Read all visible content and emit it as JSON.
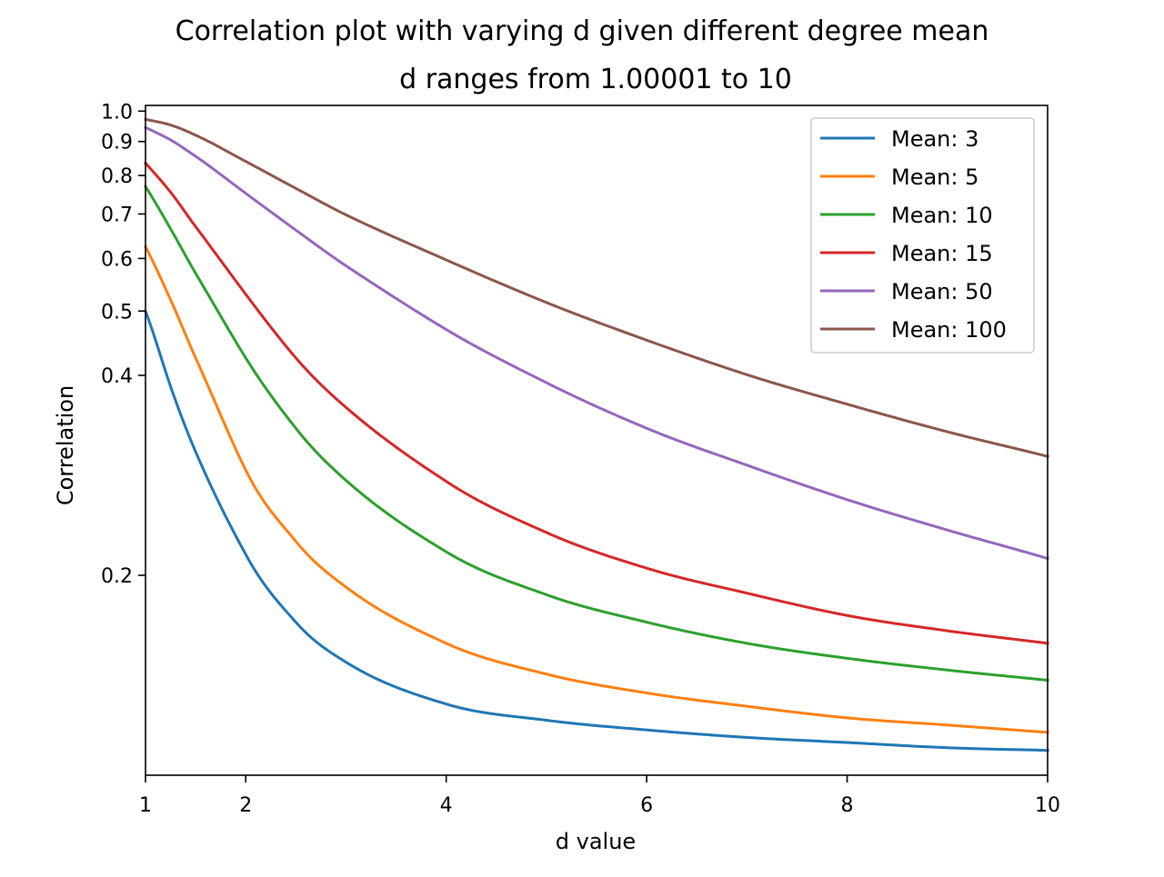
{
  "chart_data": {
    "type": "line",
    "title": "Correlation plot with varying d given different degree mean",
    "subtitle": "d ranges from 1.00001 to 10",
    "xlabel": "d value",
    "ylabel": "Correlation",
    "xlim": [
      1,
      10
    ],
    "ylim": [
      0.1,
      1.02
    ],
    "x_ticks": [
      1,
      2,
      4,
      6,
      8,
      10
    ],
    "x_tick_labels": [
      "1",
      "2",
      "4",
      "6",
      "8",
      "10"
    ],
    "y_ticks": [
      0.2,
      0.4,
      0.5,
      0.6,
      0.7,
      0.8,
      0.9,
      1.0
    ],
    "y_tick_labels": [
      "0.2",
      "0.4",
      "0.5",
      "0.6",
      "0.7",
      "0.8",
      "0.9",
      "1.0"
    ],
    "grid": false,
    "legend_position": "top-right",
    "x": [
      1,
      1.25,
      1.5,
      2,
      2.5,
      3,
      4,
      5,
      6,
      7,
      8,
      9,
      10
    ],
    "series": [
      {
        "name": "Mean: 3",
        "color": "#1f77b4",
        "values": [
          0.5,
          0.385,
          0.307,
          0.215,
          0.17,
          0.148,
          0.128,
          0.121,
          0.117,
          0.114,
          0.112,
          0.11,
          0.109
        ]
      },
      {
        "name": "Mean: 5",
        "color": "#ff7f0e",
        "values": [
          0.625,
          0.52,
          0.425,
          0.288,
          0.225,
          0.192,
          0.158,
          0.142,
          0.133,
          0.127,
          0.122,
          0.119,
          0.116
        ]
      },
      {
        "name": "Mean: 10",
        "color": "#2ca02c",
        "values": [
          0.77,
          0.665,
          0.57,
          0.425,
          0.333,
          0.278,
          0.217,
          0.187,
          0.17,
          0.158,
          0.15,
          0.144,
          0.139
        ]
      },
      {
        "name": "Mean: 15",
        "color": "#d62728",
        "values": [
          0.835,
          0.755,
          0.67,
          0.53,
          0.425,
          0.358,
          0.277,
          0.232,
          0.205,
          0.188,
          0.174,
          0.165,
          0.158
        ]
      },
      {
        "name": "Mean: 50",
        "color": "#9467bd",
        "values": [
          0.945,
          0.905,
          0.855,
          0.752,
          0.662,
          0.585,
          0.469,
          0.39,
          0.333,
          0.293,
          0.26,
          0.234,
          0.212
        ]
      },
      {
        "name": "Mean: 100",
        "color": "#8c564b",
        "values": [
          0.972,
          0.953,
          0.92,
          0.84,
          0.765,
          0.698,
          0.597,
          0.515,
          0.452,
          0.401,
          0.362,
          0.329,
          0.302
        ]
      }
    ]
  }
}
